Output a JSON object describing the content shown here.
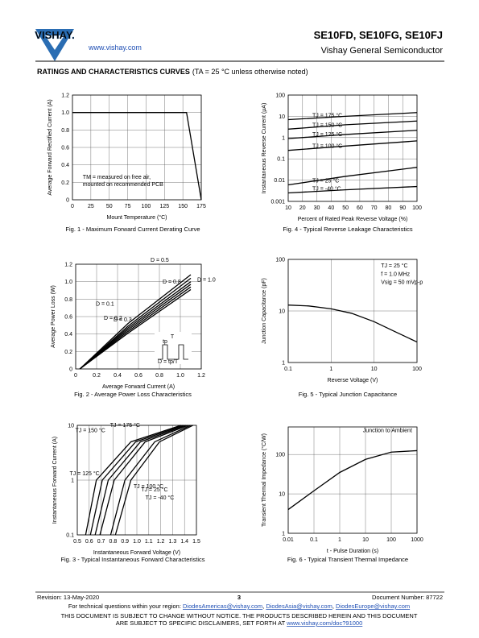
{
  "header": {
    "logo": "VISHAY.",
    "url": "www.vishay.com",
    "title": "SE10FD, SE10FG, SE10FJ",
    "subtitle": "Vishay General Semiconductor"
  },
  "section": {
    "title": "RATINGS AND CHARACTERISTICS CURVES",
    "note": "(TA = 25 °C unless otherwise noted)"
  },
  "chart_data": [
    {
      "type": "line",
      "caption": "Fig. 1 - Maximum Forward Current Derating Curve",
      "x_label": "Mount Temperature (°C)",
      "y_label": "Average Forward Rectified Current (A)",
      "xscale": "linear",
      "yscale": "linear",
      "xlim": [
        0,
        175
      ],
      "xticks": [
        0,
        25,
        50,
        75,
        100,
        125,
        150,
        175
      ],
      "ylim": [
        0,
        1.2
      ],
      "yticks": [
        0,
        0.2,
        0.4,
        0.6,
        0.8,
        {
          "value": 1,
          "label": "1.0"
        },
        1.2
      ],
      "grid": true,
      "series": [
        {
          "color": "#000000",
          "x": [
            0,
            155,
            175
          ],
          "values": [
            1,
            1,
            0
          ]
        }
      ],
      "annotations": [
        "TM = measured on free air,",
        "mounted on recommended PCB"
      ]
    },
    {
      "type": "line",
      "caption": "Fig. 2 - Average Power Loss Characteristics",
      "x_label": "Average Forward Current (A)",
      "y_label": "Average Power Loss (W)",
      "xscale": "linear",
      "yscale": "linear",
      "xlim": [
        0,
        1.2
      ],
      "xticks": [
        0,
        0.2,
        0.4,
        0.6,
        0.8,
        {
          "value": 1,
          "label": "1.0"
        },
        1.2
      ],
      "ylim": [
        0,
        1.2
      ],
      "yticks": [
        0,
        0.2,
        0.4,
        0.6,
        0.8,
        {
          "value": 1,
          "label": "1.0"
        },
        1.2
      ],
      "grid": true,
      "series": [
        {
          "name": "D = 0.1",
          "color": "#000000",
          "x": [
            0.04,
            0.5,
            1.1
          ],
          "values": [
            0,
            0.52,
            1.08
          ]
        },
        {
          "name": "D = 0.2",
          "color": "#000000",
          "x": [
            0.04,
            0.5,
            1.1
          ],
          "values": [
            0,
            0.49,
            1.04
          ]
        },
        {
          "name": "D = 0.3",
          "color": "#000000",
          "x": [
            0.04,
            0.5,
            1.1
          ],
          "values": [
            0,
            0.47,
            1.0
          ]
        },
        {
          "name": "D = 0.5",
          "color": "#000000",
          "x": [
            0.04,
            0.5,
            1.1
          ],
          "values": [
            0,
            0.45,
            0.97
          ]
        },
        {
          "name": "D = 0.8",
          "color": "#000000",
          "x": [
            0.04,
            0.5,
            1.1
          ],
          "values": [
            0,
            0.43,
            0.94
          ]
        },
        {
          "name": "D = 1.0",
          "color": "#000000",
          "x": [
            0.04,
            0.5,
            1.1
          ],
          "values": [
            0,
            0.41,
            0.91
          ]
        }
      ],
      "inset_labels": [
        "T",
        "tp",
        "D = tp/T"
      ]
    },
    {
      "type": "line",
      "caption": "Fig. 3 - Typical Instantaneous Forward Characteristics",
      "x_label": "Instantaneous Forward Voltage (V)",
      "y_label": "Instantaneous Forward Current (A)",
      "xscale": "linear",
      "yscale": "log",
      "xlim": [
        0.5,
        1.5
      ],
      "xticks": [
        0.5,
        0.6,
        0.7,
        0.8,
        0.9,
        {
          "value": 1,
          "label": "1.0"
        },
        1.1,
        1.2,
        1.3,
        1.4,
        1.5
      ],
      "ylim": [
        0.1,
        10
      ],
      "yticks": [
        0.1,
        1,
        10
      ],
      "grid": true,
      "series": [
        {
          "name": "TJ = 175 °C",
          "color": "#000000",
          "x": [
            0.57,
            0.66,
            0.95,
            1.37
          ],
          "values": [
            0.1,
            1,
            5,
            10
          ]
        },
        {
          "name": "TJ = 150 °C",
          "color": "#000000",
          "x": [
            0.61,
            0.71,
            0.99,
            1.39
          ],
          "values": [
            0.1,
            1,
            5,
            10
          ]
        },
        {
          "name": "TJ = 125 °C",
          "color": "#000000",
          "x": [
            0.65,
            0.76,
            1.03,
            1.41
          ],
          "values": [
            0.1,
            1,
            5,
            10
          ]
        },
        {
          "name": "TJ = 100 °C",
          "color": "#000000",
          "x": [
            0.69,
            0.81,
            1.07,
            1.43
          ],
          "values": [
            0.1,
            1,
            5,
            10
          ]
        },
        {
          "name": "TJ = 25 °C",
          "color": "#000000",
          "x": [
            0.78,
            0.9,
            1.15,
            1.45
          ],
          "values": [
            0.1,
            1,
            5,
            10
          ]
        },
        {
          "name": "TJ = -40 °C",
          "color": "#000000",
          "x": [
            0.82,
            0.95,
            1.19,
            1.47
          ],
          "values": [
            0.1,
            1,
            5,
            10
          ]
        }
      ]
    },
    {
      "type": "line",
      "caption": "Fig. 4 - Typical Reverse Leakage Characteristics",
      "x_label": "Percent of Rated Peak Reverse Voltage (%)",
      "y_label": "Instantaneous Reverse Current (μA)",
      "xscale": "linear",
      "yscale": "log",
      "xlim": [
        10,
        100
      ],
      "xticks": [
        10,
        20,
        30,
        40,
        50,
        60,
        70,
        80,
        90,
        100
      ],
      "ylim": [
        0.001,
        100
      ],
      "yticks": [
        0.001,
        0.01,
        0.1,
        1,
        10,
        100
      ],
      "grid": true,
      "series": [
        {
          "name": "TJ = 175 °C",
          "color": "#000000",
          "x": [
            10,
            50,
            100
          ],
          "values": [
            7,
            10,
            15
          ]
        },
        {
          "name": "TJ = 150 °C",
          "color": "#000000",
          "x": [
            10,
            50,
            100
          ],
          "values": [
            2.5,
            4,
            6
          ]
        },
        {
          "name": "TJ = 125 °C",
          "color": "#000000",
          "x": [
            10,
            50,
            100
          ],
          "values": [
            0.9,
            1.4,
            2.2
          ]
        },
        {
          "name": "TJ = 100 °C",
          "color": "#000000",
          "x": [
            10,
            50,
            100
          ],
          "values": [
            0.25,
            0.4,
            0.7
          ]
        },
        {
          "name": "TJ = 25 °C",
          "color": "#000000",
          "x": [
            10,
            50,
            100
          ],
          "values": [
            0.006,
            0.015,
            0.04
          ]
        },
        {
          "name": "TJ = -40 °C",
          "color": "#000000",
          "x": [
            10,
            50,
            100
          ],
          "values": [
            0.0025,
            0.0035,
            0.005
          ]
        }
      ]
    },
    {
      "type": "line",
      "caption": "Fig. 5 - Typical Junction Capacitance",
      "x_label": "Reverse Voltage (V)",
      "y_label": "Junction Capacitance (pF)",
      "xscale": "log",
      "yscale": "log",
      "xlim": [
        0.1,
        100
      ],
      "xticks": [
        0.1,
        1,
        10,
        100
      ],
      "ylim": [
        1,
        100
      ],
      "yticks": [
        1,
        10,
        100
      ],
      "grid": true,
      "series": [
        {
          "color": "#000000",
          "x": [
            0.1,
            0.3,
            1,
            3,
            10,
            30,
            100
          ],
          "values": [
            13,
            12.5,
            11,
            9,
            6.2,
            4,
            2.5
          ]
        }
      ],
      "annotations": [
        "TJ = 25 °C",
        "f = 1.0 MHz",
        "Vsig = 50 mVp-p"
      ]
    },
    {
      "type": "line",
      "caption": "Fig. 6 - Typical Transient Thermal Impedance",
      "x_label": "t - Pulse Duration (s)",
      "y_label": "Transient Thermal Impedance (°C/W)",
      "xscale": "log",
      "yscale": "log",
      "xlim": [
        0.01,
        1000
      ],
      "xticks": [
        0.01,
        0.1,
        1,
        10,
        100,
        1000
      ],
      "ylim": [
        1,
        500
      ],
      "yticks": [
        1,
        10,
        100
      ],
      "grid": true,
      "series": [
        {
          "color": "#000000",
          "x": [
            0.01,
            0.1,
            1,
            10,
            100,
            1000
          ],
          "values": [
            4,
            12,
            35,
            75,
            115,
            125
          ]
        }
      ],
      "annotations": [
        "Junction to Ambient"
      ]
    }
  ],
  "footer": {
    "revision": "Revision: 13-May-2020",
    "page": "3",
    "doc_number": "Document Number: 87722",
    "contact_prefix": "For technical questions within your region: ",
    "emails": [
      "DiodesAmericas@vishay.com",
      "DiodesAsia@vishay.com",
      "DiodesEurope@vishay.com"
    ],
    "separator": ", ",
    "disclaimer_1": "THIS DOCUMENT IS SUBJECT TO CHANGE WITHOUT NOTICE. THE PRODUCTS DESCRIBED HEREIN AND THIS DOCUMENT",
    "disclaimer_2": "ARE SUBJECT TO SPECIFIC DISCLAIMERS, SET FORTH AT ",
    "disclaimer_link": "www.vishay.com/doc?91000"
  }
}
